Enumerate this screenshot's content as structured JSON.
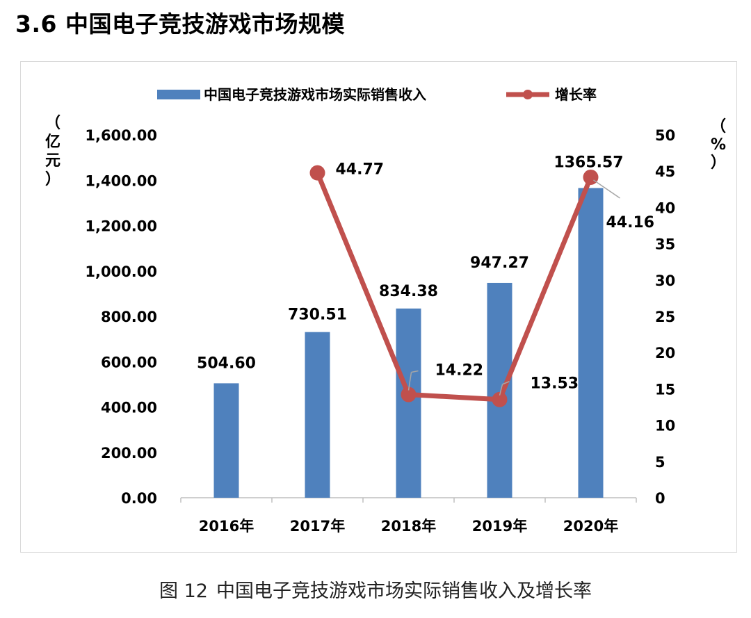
{
  "page": {
    "section_title": "3.6  中国电子竞技游戏市场规模",
    "caption_prefix": "图 12",
    "caption_text": "中国电子竞技游戏市场实际销售收入及增长率"
  },
  "chart_data": {
    "type": "bar",
    "categories": [
      "2016年",
      "2017年",
      "2018年",
      "2019年",
      "2020年"
    ],
    "series": [
      {
        "name": "中国电子竞技游戏市场实际销售收入",
        "type": "bar",
        "axis": "left",
        "color": "#4F81BD",
        "values": [
          504.6,
          730.51,
          834.38,
          947.27,
          1365.57
        ],
        "labels": [
          "504.60",
          "730.51",
          "834.38",
          "947.27",
          "1365.57"
        ]
      },
      {
        "name": "增长率",
        "type": "line",
        "axis": "right",
        "color": "#C0504D",
        "values": [
          null,
          44.77,
          14.22,
          13.53,
          44.16
        ],
        "labels": [
          "",
          "44.77",
          "14.22",
          "13.53",
          "44.16"
        ]
      }
    ],
    "y_left": {
      "label": "（亿元）",
      "min": 0,
      "max": 1600,
      "step": 200,
      "ticks": [
        "0.00",
        "200.00",
        "400.00",
        "600.00",
        "800.00",
        "1,000.00",
        "1,200.00",
        "1,400.00",
        "1,600.00"
      ]
    },
    "y_right": {
      "label": "（%）",
      "min": 0,
      "max": 50,
      "step": 5,
      "ticks": [
        "0",
        "5",
        "10",
        "15",
        "20",
        "25",
        "30",
        "35",
        "40",
        "45",
        "50"
      ]
    },
    "legend_position": "top",
    "grid": false
  }
}
